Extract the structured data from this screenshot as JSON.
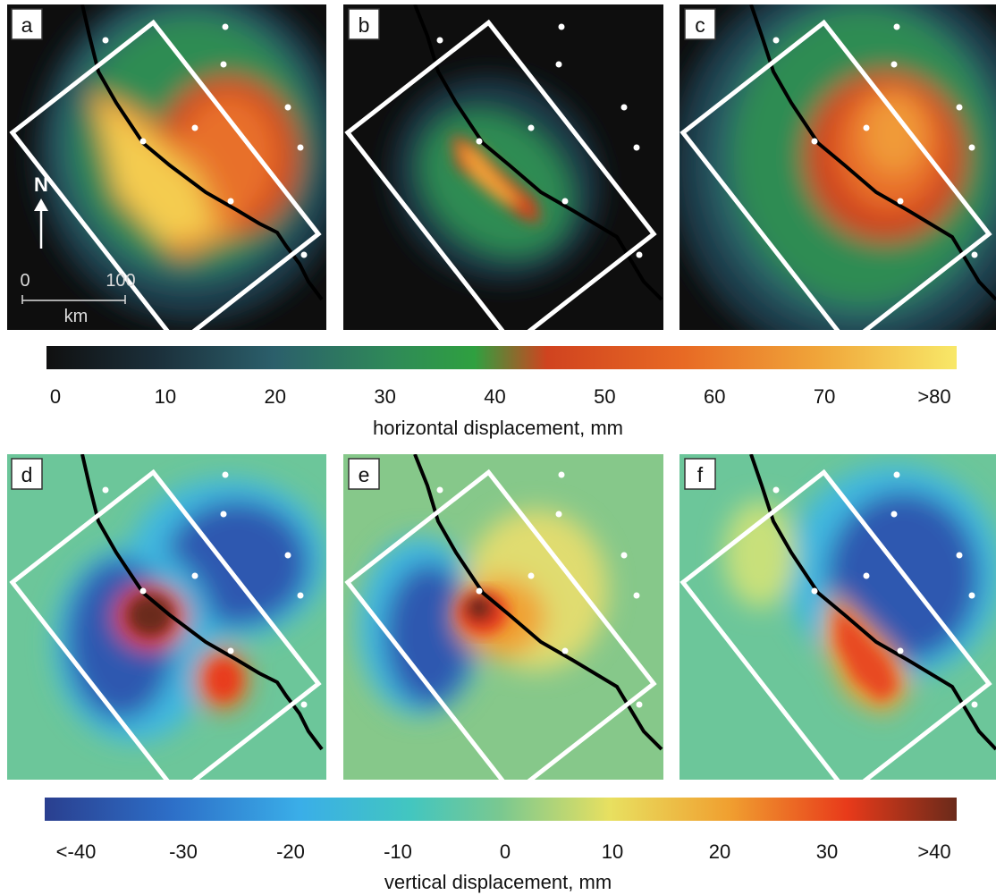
{
  "panels": {
    "a": {
      "label": "a"
    },
    "b": {
      "label": "b"
    },
    "c": {
      "label": "c"
    },
    "d": {
      "label": "d"
    },
    "e": {
      "label": "e"
    },
    "f": {
      "label": "f"
    }
  },
  "north_label": "N",
  "scale_bar": {
    "start": "0",
    "end": "100",
    "unit": "km"
  },
  "horizontal_colorbar": {
    "title": "horizontal displacement, mm",
    "ticks": [
      "0",
      "10",
      "20",
      "30",
      "40",
      "50",
      "60",
      "70",
      ">80"
    ],
    "colors": [
      "#101010",
      "#1b2f3a",
      "#2b5f6b",
      "#2f8a58",
      "#2fa040",
      "#d0431f",
      "#e86a24",
      "#f0a63a",
      "#f8e868"
    ]
  },
  "vertical_colorbar": {
    "title": "vertical displacement, mm",
    "ticks": [
      "<-40",
      "-30",
      "-20",
      "-10",
      "0",
      "10",
      "20",
      "30",
      ">40"
    ],
    "colors": [
      "#2a3f8f",
      "#2d6fc8",
      "#3aaee8",
      "#42c6c0",
      "#7ac890",
      "#e8e060",
      "#f0a030",
      "#e83a1a",
      "#6a2a1a"
    ]
  }
}
